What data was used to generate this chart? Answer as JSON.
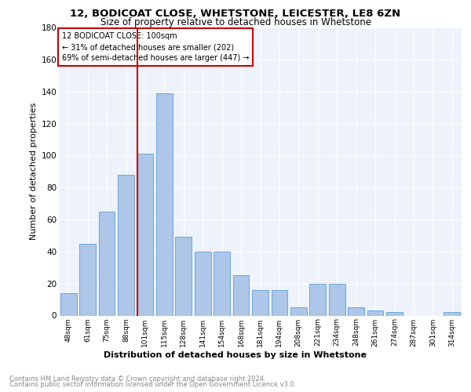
{
  "title1": "12, BODICOAT CLOSE, WHETSTONE, LEICESTER, LE8 6ZN",
  "title2": "Size of property relative to detached houses in Whetstone",
  "xlabel": "Distribution of detached houses by size in Whetstone",
  "ylabel": "Number of detached properties",
  "categories": [
    "48sqm",
    "61sqm",
    "75sqm",
    "88sqm",
    "101sqm",
    "115sqm",
    "128sqm",
    "141sqm",
    "154sqm",
    "168sqm",
    "181sqm",
    "194sqm",
    "208sqm",
    "221sqm",
    "234sqm",
    "248sqm",
    "261sqm",
    "274sqm",
    "287sqm",
    "301sqm",
    "314sqm"
  ],
  "values": [
    14,
    45,
    65,
    88,
    101,
    139,
    49,
    40,
    40,
    25,
    16,
    16,
    5,
    20,
    20,
    5,
    3,
    2,
    0,
    0,
    2
  ],
  "bar_color": "#aec6e8",
  "bar_edgecolor": "#5a9fd4",
  "vline_color": "#cc0000",
  "annotation_lines": [
    "12 BODICOAT CLOSE: 100sqm",
    "← 31% of detached houses are smaller (202)",
    "69% of semi-detached houses are larger (447) →"
  ],
  "annotation_box_color": "#cc0000",
  "ylim": [
    0,
    180
  ],
  "yticks": [
    0,
    20,
    40,
    60,
    80,
    100,
    120,
    140,
    160,
    180
  ],
  "footer1": "Contains HM Land Registry data © Crown copyright and database right 2024.",
  "footer2": "Contains public sector information licensed under the Open Government Licence v3.0.",
  "plot_bg_color": "#eef2fa"
}
